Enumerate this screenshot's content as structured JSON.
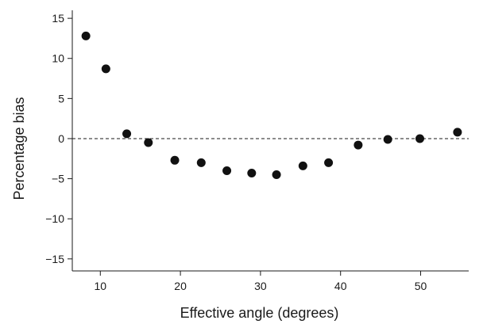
{
  "chart_data": {
    "type": "scatter",
    "title": "",
    "xlabel": "Effective angle (degrees)",
    "ylabel": "Percentage bias",
    "xlim": [
      6.5,
      56
    ],
    "ylim": [
      -16.5,
      16
    ],
    "xticks": [
      10,
      20,
      30,
      40,
      50
    ],
    "yticks": [
      15,
      10,
      5,
      0,
      -5,
      -10,
      -15
    ],
    "ytick_labels": [
      "15",
      "10",
      "5",
      "0",
      "−5",
      "−10",
      "−15"
    ],
    "reference_line": {
      "y": 0,
      "style": "dashed"
    },
    "grid": false,
    "series": [
      {
        "x": [
          8.2,
          10.7,
          13.3,
          16.0,
          19.3,
          22.6,
          25.8,
          28.9,
          32.0,
          35.3,
          38.5,
          42.2,
          45.9,
          49.9,
          54.6
        ],
        "y": [
          12.8,
          8.7,
          0.6,
          -0.5,
          -2.7,
          -3.0,
          -4.0,
          -4.3,
          -4.5,
          -3.4,
          -3.0,
          -0.8,
          -0.1,
          0.0,
          0.8
        ]
      }
    ]
  }
}
